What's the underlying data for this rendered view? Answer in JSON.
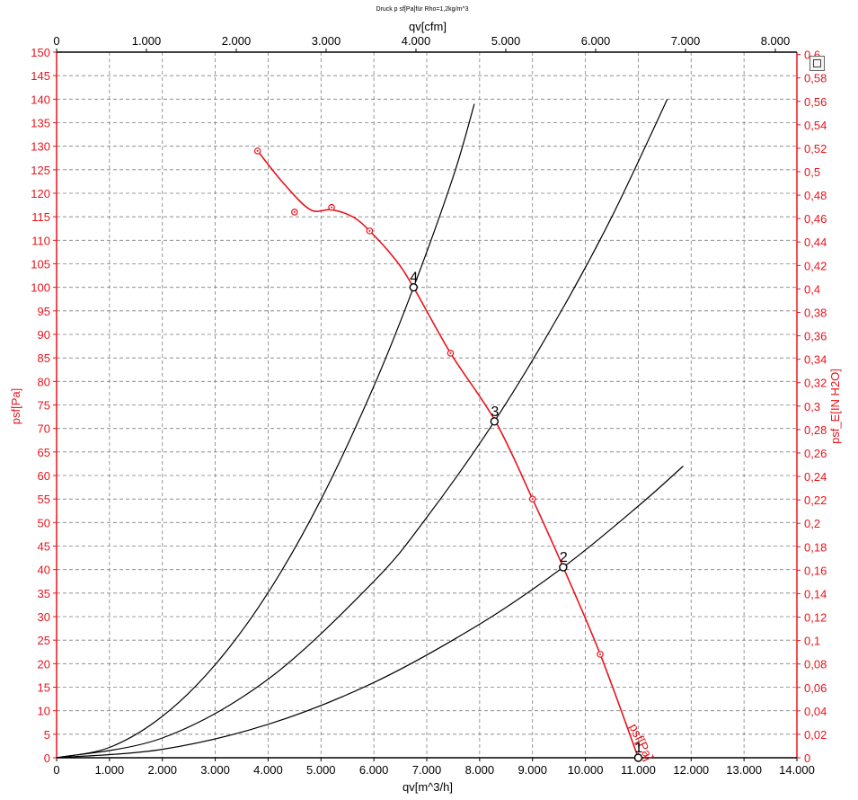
{
  "chart_data": {
    "type": "line",
    "title": "Druck p sf[Pa]für Rho=1,2kg/m^3",
    "xlabel_bottom": "qv[m^3/h]",
    "xlabel_top": "qv[cfm]",
    "ylabel_left": "psf[Pa]",
    "ylabel_right": "psf_E[IN H2O]",
    "xlim": [
      0,
      14000
    ],
    "ylim": [
      0,
      150
    ],
    "top_xlim": [
      0,
      8240
    ],
    "right_ylim": [
      0,
      0.602
    ],
    "grid": true,
    "x_ticks": [
      "0",
      "1.000",
      "2.000",
      "3.000",
      "4.000",
      "5.000",
      "6.000",
      "7.000",
      "8.000",
      "9.000",
      "10.000",
      "11.000",
      "12.000",
      "13.000",
      "14.000"
    ],
    "x_tick_values": [
      0,
      1000,
      2000,
      3000,
      4000,
      5000,
      6000,
      7000,
      8000,
      9000,
      10000,
      11000,
      12000,
      13000,
      14000
    ],
    "top_ticks": [
      "0",
      "1.000",
      "2.000",
      "3.000",
      "4.000",
      "5.000",
      "6.000",
      "7.000",
      "8.000"
    ],
    "top_tick_values": [
      0,
      1000,
      2000,
      3000,
      4000,
      5000,
      6000,
      7000,
      8000
    ],
    "y_ticks": [
      "0",
      "5",
      "10",
      "15",
      "20",
      "25",
      "30",
      "35",
      "40",
      "45",
      "50",
      "55",
      "60",
      "65",
      "70",
      "75",
      "80",
      "85",
      "90",
      "95",
      "100",
      "105",
      "110",
      "115",
      "120",
      "125",
      "130",
      "135",
      "140",
      "145",
      "150"
    ],
    "y_tick_values": [
      0,
      5,
      10,
      15,
      20,
      25,
      30,
      35,
      40,
      45,
      50,
      55,
      60,
      65,
      70,
      75,
      80,
      85,
      90,
      95,
      100,
      105,
      110,
      115,
      120,
      125,
      130,
      135,
      140,
      145,
      150
    ],
    "right_ticks": [
      "0",
      "0,02",
      "0,04",
      "0,06",
      "0,08",
      "0,1",
      "0,12",
      "0,14",
      "0,16",
      "0,18",
      "0,2",
      "0,22",
      "0,24",
      "0,26",
      "0,28",
      "0,3",
      "0,32",
      "0,34",
      "0,36",
      "0,38",
      "0,4",
      "0,42",
      "0,44",
      "0,46",
      "0,48",
      "0,5",
      "0,52",
      "0,54",
      "0,56",
      "0,58",
      "0,6"
    ],
    "right_tick_values": [
      0,
      0.02,
      0.04,
      0.06,
      0.08,
      0.1,
      0.12,
      0.14,
      0.16,
      0.18,
      0.2,
      0.22,
      0.24,
      0.26,
      0.28,
      0.3,
      0.32,
      0.34,
      0.36,
      0.38,
      0.4,
      0.42,
      0.44,
      0.46,
      0.48,
      0.5,
      0.52,
      0.54,
      0.56,
      0.58,
      0.6
    ],
    "fan_curve": {
      "name": "psf[Pa]",
      "color": "#e8141c",
      "x": [
        3800,
        4300,
        4800,
        5200,
        5600,
        5920,
        6400,
        6750,
        7450,
        8300,
        9000,
        9580,
        10280,
        11000
      ],
      "y": [
        129,
        122,
        116.5,
        116.5,
        115,
        112,
        106,
        100,
        86,
        71.5,
        55,
        40.5,
        22,
        0
      ],
      "measured_points": {
        "x": [
          3800,
          4500,
          5200,
          5920,
          7450,
          9000,
          10280
        ],
        "y": [
          129,
          116,
          117,
          112,
          86,
          55,
          22
        ]
      }
    },
    "system_curves": [
      {
        "label": "4",
        "color": "#000000",
        "x": [
          0,
          1000,
          2000,
          3000,
          4000,
          5000,
          6000,
          6750,
          7500,
          7900
        ],
        "y": [
          0,
          2.2,
          8.8,
          19.8,
          35.1,
          54.9,
          79,
          100,
          123.5,
          139
        ]
      },
      {
        "label": "3",
        "color": "#000000",
        "x": [
          0,
          2000,
          4000,
          6000,
          7000,
          8280,
          9500,
          10500,
          11550
        ],
        "y": [
          0,
          4.2,
          16.7,
          37.5,
          51.1,
          71.5,
          94.1,
          115,
          140
        ]
      },
      {
        "label": "2",
        "color": "#000000",
        "x": [
          0,
          2000,
          4000,
          6000,
          8000,
          9580,
          11000,
          11850
        ],
        "y": [
          0,
          1.8,
          7.1,
          16,
          28.4,
          40.5,
          53.5,
          62
        ]
      }
    ],
    "operating_points": [
      {
        "label": "1",
        "x": 11000,
        "y": 0
      },
      {
        "label": "2",
        "x": 9580,
        "y": 40.5
      },
      {
        "label": "3",
        "x": 8280,
        "y": 71.5
      },
      {
        "label": "4",
        "x": 6750,
        "y": 100
      }
    ],
    "curve_label": "psf[Pa]",
    "colors": {
      "axis_red": "#e8141c",
      "axis_black": "#000000",
      "grid": "#7f7f7f"
    }
  },
  "toolbar": {
    "icon": "print-icon"
  }
}
